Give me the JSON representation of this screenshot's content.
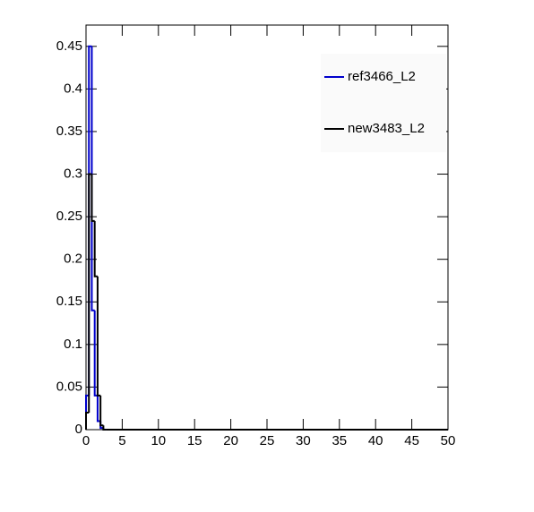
{
  "chart_data": {
    "type": "histogram",
    "bins": [
      0,
      0.4,
      0.8,
      1.2,
      1.6,
      2.0,
      2.4,
      2.8
    ],
    "series": [
      {
        "name": "ref3466_L2",
        "color": "#0000cc",
        "values": [
          0.04,
          0.45,
          0.14,
          0.04,
          0.01,
          0.002,
          0
        ]
      },
      {
        "name": "new3483_L2",
        "color": "#000000",
        "values": [
          0.02,
          0.3,
          0.245,
          0.18,
          0.04,
          0.005,
          0
        ]
      }
    ],
    "xlim": [
      0,
      50
    ],
    "xticks": [
      0,
      5,
      10,
      15,
      20,
      25,
      30,
      35,
      40,
      45,
      50
    ],
    "ylim": [
      0,
      0.475
    ],
    "yticks": [
      0,
      0.05,
      0.1,
      0.15,
      0.2,
      0.25,
      0.3,
      0.35,
      0.4,
      0.45
    ],
    "legend": "top-right"
  }
}
